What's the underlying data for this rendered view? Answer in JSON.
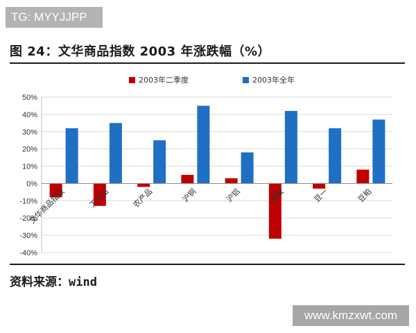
{
  "watermark_top": "TG: MYYJJPP",
  "watermark_bottom": "www.kmzxwt.com",
  "figure": {
    "title": "图 24：文华商品指数 2003 年涨跌幅（%）",
    "source_label": "资料来源：",
    "source_value": "wind"
  },
  "colors": {
    "q2": "#c00000",
    "full_year": "#1f6fc4",
    "grid": "#d9d9d9"
  },
  "chart_data": {
    "type": "bar",
    "title": "",
    "xlabel": "",
    "ylabel": "",
    "ylim": [
      -40,
      50
    ],
    "ytick_step": 10,
    "ytick_suffix": "%",
    "grid": true,
    "legend_position": "top",
    "categories": [
      "文华商品指数",
      "工业品",
      "农产品",
      "沪铜",
      "沪铝",
      "橡胶",
      "豆一",
      "豆粕"
    ],
    "series": [
      {
        "name": "2003年二季度",
        "color": "#c00000",
        "values": [
          -8,
          -13,
          -2,
          5,
          3,
          -32,
          -3,
          8
        ]
      },
      {
        "name": "2003年全年",
        "color": "#1f6fc4",
        "values": [
          32,
          35,
          25,
          45,
          18,
          42,
          32,
          37
        ]
      }
    ]
  }
}
